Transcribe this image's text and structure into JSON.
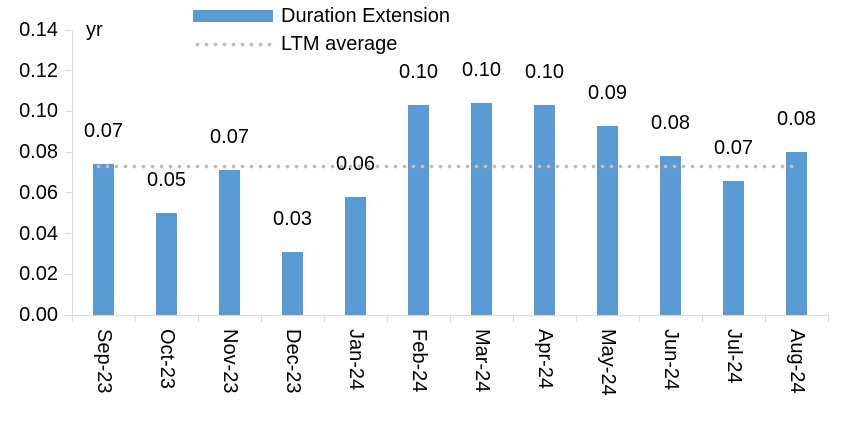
{
  "chart_data": {
    "type": "bar",
    "unit_label": "yr",
    "categories": [
      "Sep-23",
      "Oct-23",
      "Nov-23",
      "Dec-23",
      "Jan-24",
      "Feb-24",
      "Mar-24",
      "Apr-24",
      "May-24",
      "Jun-24",
      "Jul-24",
      "Aug-24"
    ],
    "series": [
      {
        "name": "Duration Extension",
        "type": "bar",
        "color": "#5B9BD5",
        "values": [
          0.074,
          0.05,
          0.071,
          0.031,
          0.058,
          0.103,
          0.104,
          0.103,
          0.093,
          0.078,
          0.066,
          0.08
        ],
        "data_labels": [
          "0.07",
          "0.05",
          "0.07",
          "0.03",
          "0.06",
          "0.10",
          "0.10",
          "0.10",
          "0.09",
          "0.08",
          "0.07",
          "0.08"
        ]
      },
      {
        "name": "LTM average",
        "type": "line",
        "line_style": "dotted",
        "color": "#BFBFBF",
        "value": 0.073
      }
    ],
    "ylim": [
      0,
      0.14
    ],
    "ytick_labels": [
      "0.00",
      "0.02",
      "0.04",
      "0.06",
      "0.08",
      "0.10",
      "0.12",
      "0.14"
    ],
    "grid": false,
    "legend_position": "top-center",
    "axis_color": "#D9D9D9",
    "text_color": "#000000"
  }
}
